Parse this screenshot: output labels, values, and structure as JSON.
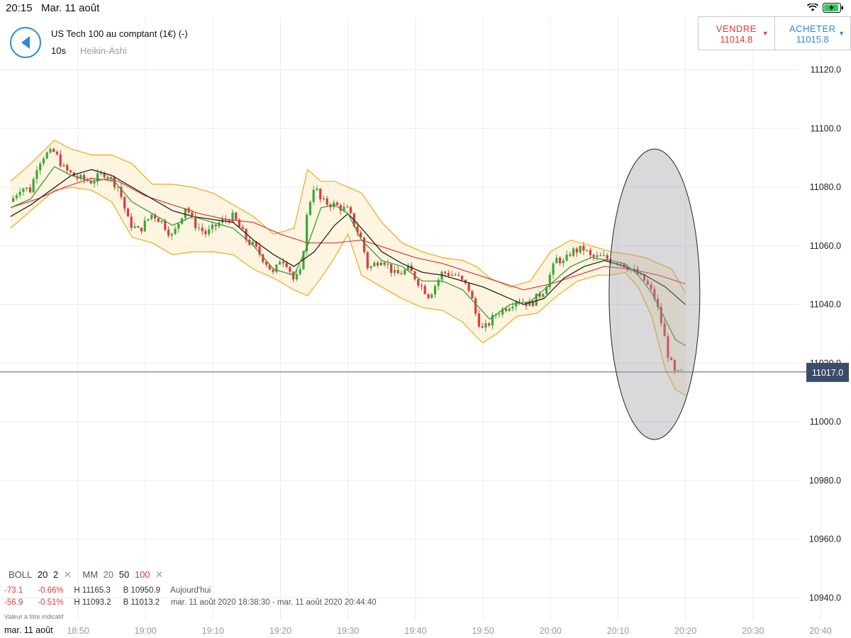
{
  "status_bar": {
    "time": "20:15",
    "date": "Mar. 11 août",
    "battery_icon": "battery-charging-icon",
    "wifi_icon": "wifi-icon"
  },
  "header": {
    "instrument": "US Tech 100 au comptant (1€) (-)",
    "timeframe": "10s",
    "chart_type": "Heikin-Ashi",
    "back_icon": "back-arrow-icon"
  },
  "trade": {
    "sell_label": "VENDRE",
    "sell_price": "11014.8",
    "buy_label": "ACHETER",
    "buy_price": "11015.8",
    "sell_color": "#e23a3a",
    "buy_color": "#2a8ad4"
  },
  "legend": {
    "boll_label": "BOLL",
    "boll_period": "20",
    "boll_dev": "2",
    "mm_label": "MM",
    "mm1": "20",
    "mm2": "50",
    "mm3": "100",
    "remove_icon": "close-icon"
  },
  "stats": [
    {
      "change": "-73.1",
      "pct": "-0.66%",
      "high": "H 11165.3",
      "low": "B 10950.9",
      "period": "Aujourd'hui"
    },
    {
      "change": "-56.9",
      "pct": "-0.51%",
      "high": "H 11093.2",
      "low": "B 11013.2",
      "period": "mar. 11 août 2020 18:38:30 - mar. 11 août 2020 20:44:40"
    }
  ],
  "disclaimer": "Valeur à titre indicatif",
  "chart_data": {
    "type": "candlestick",
    "style": "Heikin-Ashi",
    "x_date_label": "mar. 11 août",
    "x_ticks": [
      "18:50",
      "19:00",
      "19:10",
      "19:20",
      "19:30",
      "19:40",
      "19:50",
      "20:00",
      "20:10",
      "20:20",
      "20:30",
      "20:40"
    ],
    "y_ticks": [
      "11120.0",
      "11100.0",
      "11080.0",
      "11060.0",
      "11040.0",
      "11020.0",
      "11000.0",
      "10980.0",
      "10960.0",
      "10940.0"
    ],
    "ylim": [
      10934,
      11142
    ],
    "xlim_minutes": [
      0,
      122
    ],
    "current_price": "11017.0",
    "grid": true,
    "annotation": "ellipse-highlight-last-drop",
    "series": [
      {
        "name": "BOLL",
        "color": "#f0a818"
      },
      {
        "name": "20",
        "color": "#3a9a3a"
      },
      {
        "name": "50",
        "color": "#222222"
      },
      {
        "name": "100",
        "color": "#d63a3a"
      }
    ],
    "price_path": [
      [
        0,
        11075
      ],
      [
        1.5,
        11080
      ],
      [
        3,
        11079
      ],
      [
        4,
        11088
      ],
      [
        5,
        11091
      ],
      [
        6.5,
        11092
      ],
      [
        8,
        11086
      ],
      [
        10,
        11083
      ],
      [
        12,
        11082
      ],
      [
        14,
        11085
      ],
      [
        16,
        11080
      ],
      [
        17.5,
        11068
      ],
      [
        19,
        11065
      ],
      [
        21,
        11071
      ],
      [
        22.5,
        11068
      ],
      [
        24,
        11063
      ],
      [
        26,
        11074
      ],
      [
        27,
        11068
      ],
      [
        29,
        11064
      ],
      [
        31,
        11068
      ],
      [
        33,
        11070
      ],
      [
        35,
        11062
      ],
      [
        36,
        11060
      ],
      [
        38,
        11054
      ],
      [
        39,
        11050
      ],
      [
        40,
        11056
      ],
      [
        41,
        11054
      ],
      [
        42,
        11048
      ],
      [
        43,
        11051
      ],
      [
        44,
        11072
      ],
      [
        45,
        11081
      ],
      [
        46,
        11075
      ],
      [
        48,
        11074
      ],
      [
        50,
        11072
      ],
      [
        52,
        11062
      ],
      [
        53,
        11052
      ],
      [
        55,
        11056
      ],
      [
        57,
        11050
      ],
      [
        59,
        11052
      ],
      [
        61,
        11046
      ],
      [
        62,
        11043
      ],
      [
        64,
        11051
      ],
      [
        66,
        11050
      ],
      [
        68,
        11045
      ],
      [
        69,
        11036
      ],
      [
        70,
        11031
      ],
      [
        72,
        11037
      ],
      [
        74,
        11040
      ],
      [
        75,
        11042
      ],
      [
        77,
        11040
      ],
      [
        79,
        11045
      ],
      [
        81,
        11056
      ],
      [
        82,
        11054
      ],
      [
        83,
        11058
      ],
      [
        85,
        11059
      ],
      [
        86,
        11056
      ],
      [
        88,
        11056
      ],
      [
        89,
        11055
      ],
      [
        90,
        11055
      ],
      [
        92,
        11052
      ],
      [
        94,
        11048
      ],
      [
        95.5,
        11042
      ],
      [
        96.5,
        11033
      ],
      [
        97.5,
        11022
      ],
      [
        98.5,
        11016
      ],
      [
        99.5,
        11017
      ]
    ],
    "bollinger_upper": [
      [
        0,
        11082
      ],
      [
        3,
        11088
      ],
      [
        6.5,
        11096
      ],
      [
        9,
        11093
      ],
      [
        12,
        11091
      ],
      [
        15,
        11091
      ],
      [
        18,
        11088
      ],
      [
        21,
        11081
      ],
      [
        24,
        11081
      ],
      [
        27,
        11080
      ],
      [
        30,
        11078
      ],
      [
        33,
        11074
      ],
      [
        36,
        11070
      ],
      [
        39,
        11064
      ],
      [
        42,
        11066
      ],
      [
        44,
        11086
      ],
      [
        46,
        11082
      ],
      [
        48,
        11082
      ],
      [
        50,
        11080
      ],
      [
        52,
        11078
      ],
      [
        55,
        11068
      ],
      [
        58,
        11061
      ],
      [
        61,
        11058
      ],
      [
        64,
        11056
      ],
      [
        67,
        11055
      ],
      [
        69,
        11053
      ],
      [
        71,
        11049
      ],
      [
        74,
        11046
      ],
      [
        77,
        11048
      ],
      [
        80,
        11058
      ],
      [
        83,
        11062
      ],
      [
        86,
        11060
      ],
      [
        89,
        11058
      ],
      [
        92,
        11057
      ],
      [
        94,
        11056
      ],
      [
        96,
        11054
      ],
      [
        98,
        11052
      ],
      [
        100,
        11044
      ]
    ],
    "bollinger_lower": [
      [
        0,
        11066
      ],
      [
        3,
        11072
      ],
      [
        6.5,
        11079
      ],
      [
        9,
        11080
      ],
      [
        12,
        11079
      ],
      [
        15,
        11075
      ],
      [
        18,
        11063
      ],
      [
        21,
        11061
      ],
      [
        24,
        11057
      ],
      [
        27,
        11058
      ],
      [
        30,
        11058
      ],
      [
        33,
        11057
      ],
      [
        36,
        11052
      ],
      [
        39,
        11049
      ],
      [
        42,
        11045
      ],
      [
        44,
        11043
      ],
      [
        46,
        11049
      ],
      [
        48,
        11056
      ],
      [
        50,
        11064
      ],
      [
        52,
        11050
      ],
      [
        55,
        11046
      ],
      [
        58,
        11042
      ],
      [
        61,
        11039
      ],
      [
        64,
        11038
      ],
      [
        67,
        11034
      ],
      [
        69,
        11029
      ],
      [
        70,
        11027
      ],
      [
        72,
        11030
      ],
      [
        75,
        11036
      ],
      [
        78,
        11037
      ],
      [
        81,
        11043
      ],
      [
        84,
        11048
      ],
      [
        87,
        11050
      ],
      [
        89,
        11050
      ],
      [
        91,
        11051
      ],
      [
        93,
        11046
      ],
      [
        95,
        11036
      ],
      [
        97,
        11018
      ],
      [
        98.5,
        11011
      ],
      [
        100,
        11009
      ]
    ],
    "mm20": [
      [
        0,
        11073
      ],
      [
        3,
        11076
      ],
      [
        6.5,
        11087
      ],
      [
        9,
        11084
      ],
      [
        12,
        11082
      ],
      [
        15,
        11083
      ],
      [
        18,
        11075
      ],
      [
        21,
        11071
      ],
      [
        24,
        11067
      ],
      [
        27,
        11070
      ],
      [
        30,
        11068
      ],
      [
        33,
        11066
      ],
      [
        36,
        11060
      ],
      [
        39,
        11052
      ],
      [
        42,
        11050
      ],
      [
        44,
        11060
      ],
      [
        46,
        11073
      ],
      [
        48,
        11074
      ],
      [
        50,
        11071
      ],
      [
        52,
        11062
      ],
      [
        55,
        11055
      ],
      [
        58,
        11053
      ],
      [
        61,
        11048
      ],
      [
        64,
        11048
      ],
      [
        67,
        11045
      ],
      [
        69,
        11040
      ],
      [
        71,
        11035
      ],
      [
        74,
        11040
      ],
      [
        77,
        11041
      ],
      [
        80,
        11047
      ],
      [
        83,
        11053
      ],
      [
        86,
        11056
      ],
      [
        89,
        11055
      ],
      [
        91,
        11054
      ],
      [
        93,
        11050
      ],
      [
        95,
        11044
      ],
      [
        97,
        11035
      ],
      [
        98.5,
        11028
      ],
      [
        100,
        11026
      ]
    ],
    "mm50": [
      [
        0,
        11070
      ],
      [
        3,
        11074
      ],
      [
        6,
        11079
      ],
      [
        9,
        11084
      ],
      [
        12,
        11086
      ],
      [
        15,
        11084
      ],
      [
        18,
        11080
      ],
      [
        21,
        11076
      ],
      [
        24,
        11072
      ],
      [
        27,
        11070
      ],
      [
        30,
        11069
      ],
      [
        33,
        11068
      ],
      [
        36,
        11062
      ],
      [
        39,
        11057
      ],
      [
        42,
        11053
      ],
      [
        45,
        11058
      ],
      [
        48,
        11067
      ],
      [
        50,
        11071
      ],
      [
        52,
        11066
      ],
      [
        55,
        11058
      ],
      [
        58,
        11054
      ],
      [
        61,
        11051
      ],
      [
        64,
        11050
      ],
      [
        67,
        11048
      ],
      [
        70,
        11046
      ],
      [
        73,
        11043
      ],
      [
        76,
        11040
      ],
      [
        79,
        11042
      ],
      [
        82,
        11049
      ],
      [
        85,
        11053
      ],
      [
        88,
        11055
      ],
      [
        91,
        11053
      ],
      [
        94,
        11050
      ],
      [
        97,
        11046
      ],
      [
        100,
        11040
      ]
    ],
    "mm100": [
      [
        0,
        11073
      ],
      [
        4,
        11076
      ],
      [
        8,
        11080
      ],
      [
        12,
        11083
      ],
      [
        16,
        11082
      ],
      [
        20,
        11077
      ],
      [
        24,
        11074
      ],
      [
        28,
        11071
      ],
      [
        32,
        11069
      ],
      [
        36,
        11068
      ],
      [
        40,
        11064
      ],
      [
        44,
        11061
      ],
      [
        48,
        11061
      ],
      [
        52,
        11062
      ],
      [
        56,
        11059
      ],
      [
        60,
        11056
      ],
      [
        64,
        11054
      ],
      [
        68,
        11051
      ],
      [
        72,
        11048
      ],
      [
        76,
        11045
      ],
      [
        80,
        11047
      ],
      [
        84,
        11050
      ],
      [
        88,
        11053
      ],
      [
        92,
        11052
      ],
      [
        96,
        11050
      ],
      [
        100,
        11047
      ]
    ]
  }
}
